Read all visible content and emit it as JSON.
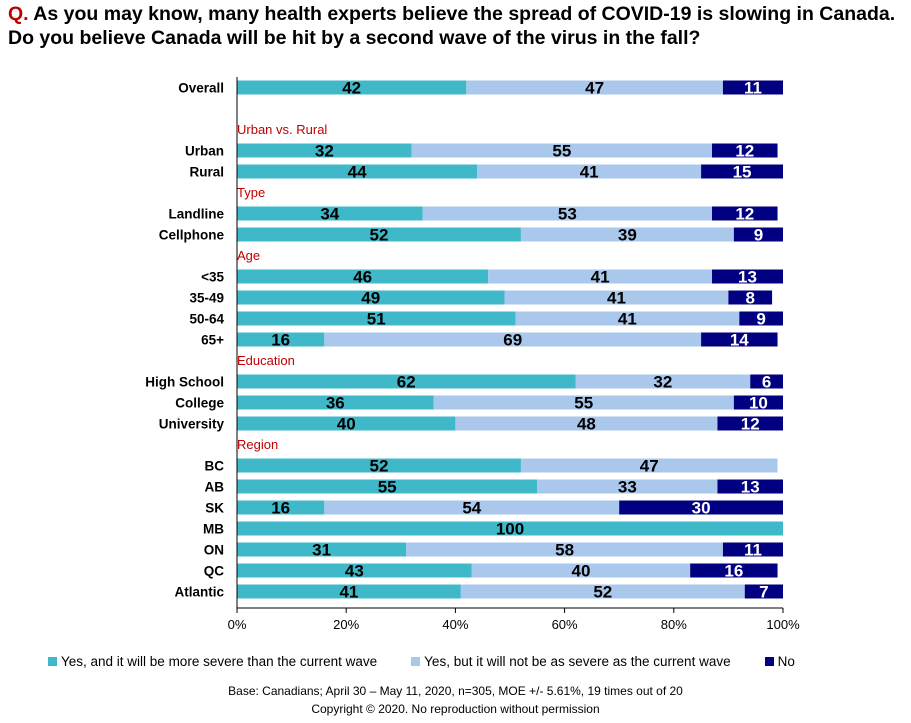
{
  "title_prefix": "Q.",
  "title_text": "As you may know, many health experts believe the spread of COVID-19 is slowing in Canada. Do you believe Canada will be hit by a second wave of the virus in the fall?",
  "chart_data": {
    "type": "bar",
    "orientation": "horizontal",
    "stacked": true,
    "xlim": [
      0,
      100
    ],
    "xticks": [
      "0%",
      "20%",
      "40%",
      "60%",
      "80%",
      "100%"
    ],
    "colors": {
      "yes_more": "#3fb8c9",
      "yes_less": "#a9c8ec",
      "no": "#000080",
      "group_header": "#c00000"
    },
    "series": [
      {
        "name": "Yes, and it will be more severe than the current wave",
        "key": "yes_more"
      },
      {
        "name": "Yes, but it will not be as severe as the current wave",
        "key": "yes_less"
      },
      {
        "name": "No",
        "key": "no"
      }
    ],
    "rows": [
      {
        "kind": "bar",
        "label": "Overall",
        "values": [
          42,
          47,
          11
        ]
      },
      {
        "kind": "gap"
      },
      {
        "kind": "header",
        "label": "Urban vs. Rural"
      },
      {
        "kind": "bar",
        "label": "Urban",
        "values": [
          32,
          55,
          12
        ]
      },
      {
        "kind": "bar",
        "label": "Rural",
        "values": [
          44,
          41,
          15
        ]
      },
      {
        "kind": "header",
        "label": "Type"
      },
      {
        "kind": "bar",
        "label": "Landline",
        "values": [
          34,
          53,
          12
        ]
      },
      {
        "kind": "bar",
        "label": "Cellphone",
        "values": [
          52,
          39,
          9
        ]
      },
      {
        "kind": "header",
        "label": "Age"
      },
      {
        "kind": "bar",
        "label": "<35",
        "values": [
          46,
          41,
          13
        ]
      },
      {
        "kind": "bar",
        "label": "35-49",
        "values": [
          49,
          41,
          8
        ]
      },
      {
        "kind": "bar",
        "label": "50-64",
        "values": [
          51,
          41,
          9
        ]
      },
      {
        "kind": "bar",
        "label": "65+",
        "values": [
          16,
          69,
          14
        ]
      },
      {
        "kind": "header",
        "label": "Education"
      },
      {
        "kind": "bar",
        "label": "High School",
        "values": [
          62,
          32,
          6
        ]
      },
      {
        "kind": "bar",
        "label": "College",
        "values": [
          36,
          55,
          10
        ]
      },
      {
        "kind": "bar",
        "label": "University",
        "values": [
          40,
          48,
          12
        ]
      },
      {
        "kind": "header",
        "label": "Region"
      },
      {
        "kind": "bar",
        "label": "BC",
        "values": [
          52,
          47,
          0
        ]
      },
      {
        "kind": "bar",
        "label": "AB",
        "values": [
          55,
          33,
          13
        ]
      },
      {
        "kind": "bar",
        "label": "SK",
        "values": [
          16,
          54,
          30
        ]
      },
      {
        "kind": "bar",
        "label": "MB",
        "values": [
          100,
          0,
          0
        ]
      },
      {
        "kind": "bar",
        "label": "ON",
        "values": [
          31,
          58,
          11
        ]
      },
      {
        "kind": "bar",
        "label": "QC",
        "values": [
          43,
          40,
          16
        ]
      },
      {
        "kind": "bar",
        "label": "Atlantic",
        "values": [
          41,
          52,
          7
        ]
      }
    ]
  },
  "legend": {
    "yes_more": "Yes, and it will be more severe than the current wave",
    "yes_less": "Yes, but it will not be as severe as the current wave",
    "no": "No"
  },
  "footer": {
    "base": "Base: Canadians; April 30 – May 11, 2020, n=305, MOE +/- 5.61%, 19 times out of 20",
    "copyright": "Copyright © 2020. No reproduction without permission"
  }
}
